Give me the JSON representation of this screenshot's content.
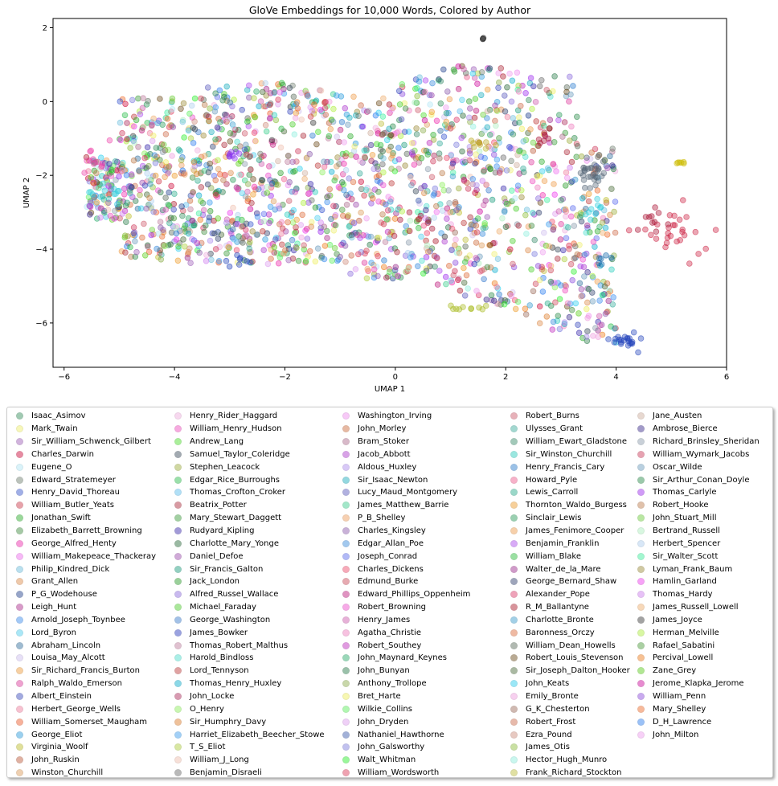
{
  "chart_data": {
    "type": "scatter",
    "title": "GloVe Embeddings for 10,000 Words, Colored by Author",
    "xlabel": "UMAP 1",
    "ylabel": "UMAP 2",
    "xlim": [
      -6.2,
      6.0
    ],
    "ylim": [
      -7.2,
      2.25
    ],
    "xticks": [
      -6,
      -4,
      -2,
      0,
      2,
      4,
      6
    ],
    "yticks": [
      -6,
      -4,
      -2,
      0,
      2
    ],
    "xtick_labels": [
      "−6",
      "−4",
      "−2",
      "0",
      "2",
      "4",
      "6"
    ],
    "ytick_labels": [
      "−6",
      "−4",
      "−2",
      "0",
      "2"
    ],
    "grid": false,
    "legend_placement": "below",
    "marker_alpha": 0.4,
    "authors": [
      {
        "name": "Isaac_Asimov",
        "color": "#2e8b57"
      },
      {
        "name": "Mark_Twain",
        "color": "#eeee66"
      },
      {
        "name": "Sir_William_Schwenck_Gilbert",
        "color": "#9b59b6"
      },
      {
        "name": "Charles_Darwin",
        "color": "#cc0033"
      },
      {
        "name": "Eugene_O",
        "color": "#aee6f5"
      },
      {
        "name": "Edward_Stratemeyer",
        "color": "#6b7b6b"
      },
      {
        "name": "Henry_David_Thoreau",
        "color": "#2f4fcc"
      },
      {
        "name": "William_Butler_Yeats",
        "color": "#cc3344"
      },
      {
        "name": "Jonathan_Swift",
        "color": "#22aa22"
      },
      {
        "name": "Elizabeth_Barrett_Browning",
        "color": "#3a8a3a"
      },
      {
        "name": "George_Alfred_Henty",
        "color": "#ee22aa"
      },
      {
        "name": "William_Makepeace_Thackeray",
        "color": "#ee66ee"
      },
      {
        "name": "Philip_Kindred_Dick",
        "color": "#66bbdd"
      },
      {
        "name": "Grant_Allen",
        "color": "#dd8844"
      },
      {
        "name": "P_G_Wodehouse",
        "color": "#1a3a8a"
      },
      {
        "name": "Leigh_Hunt",
        "color": "#aa2288"
      },
      {
        "name": "Arnold_Joseph_Toynbee",
        "color": "#3388ee"
      },
      {
        "name": "Lord_Byron",
        "color": "#44ccee"
      },
      {
        "name": "Abraham_Lincoln",
        "color": "#2a6a9a"
      },
      {
        "name": "Louisa_May_Alcott",
        "color": "#ccbbee"
      },
      {
        "name": "Sir_Richard_Francis_Burton",
        "color": "#ee9933"
      },
      {
        "name": "Ralph_Waldo_Emerson",
        "color": "#dd3399"
      },
      {
        "name": "Albert_Einstein",
        "color": "#3344bb"
      },
      {
        "name": "Herbert_George_Wells",
        "color": "#ee7799"
      },
      {
        "name": "William_Somerset_Maugham",
        "color": "#ee5522"
      },
      {
        "name": "George_Eliot",
        "color": "#2299dd"
      },
      {
        "name": "Virginia_Woolf",
        "color": "#bbbb22"
      },
      {
        "name": "John_Ruskin",
        "color": "#bb5533"
      },
      {
        "name": "Winston_Churchill",
        "color": "#dd9955"
      },
      {
        "name": "Henry_Rider_Haggard",
        "color": "#eeaadd"
      },
      {
        "name": "William_Henry_Hudson",
        "color": "#ee44bb"
      },
      {
        "name": "Andrew_Lang",
        "color": "#44dd22"
      },
      {
        "name": "Samuel_Taylor_Coleridge",
        "color": "#334455"
      },
      {
        "name": "Stephen_Leacock",
        "color": "#99aa33"
      },
      {
        "name": "Edgar_Rice_Burroughs",
        "color": "#22bb44"
      },
      {
        "name": "Thomas_Crofton_Croker",
        "color": "#55bbee"
      },
      {
        "name": "Beatrix_Potter",
        "color": "#aa2233"
      },
      {
        "name": "Mary_Stewart_Daggett",
        "color": "#339933"
      },
      {
        "name": "Rudyard_Kipling",
        "color": "#3322aa"
      },
      {
        "name": "Charlotte_Mary_Yonge",
        "color": "#226633"
      },
      {
        "name": "Daniel_Defoe",
        "color": "#9944aa"
      },
      {
        "name": "Sir_Francis_Galton",
        "color": "#119977"
      },
      {
        "name": "Jack_London",
        "color": "#229922"
      },
      {
        "name": "Alfred_Russel_Wallace",
        "color": "#8866dd"
      },
      {
        "name": "Michael_Faraday",
        "color": "#44cc22"
      },
      {
        "name": "George_Washington",
        "color": "#3377cc"
      },
      {
        "name": "James_Bowker",
        "color": "#2233bb"
      },
      {
        "name": "Thomas_Robert_Malthus",
        "color": "#bb7799"
      },
      {
        "name": "Harold_Bindloss",
        "color": "#44ddcc"
      },
      {
        "name": "Lord_Tennyson",
        "color": "#bb3333"
      },
      {
        "name": "Thomas_Henry_Huxley",
        "color": "#00aacc"
      },
      {
        "name": "John_Locke",
        "color": "#aa2255"
      },
      {
        "name": "O_Henry",
        "color": "#88ee55"
      },
      {
        "name": "Sir_Humphry_Davy",
        "color": "#dd7722"
      },
      {
        "name": "Harriet_Elizabeth_Beecher_Stowe",
        "color": "#3399ee"
      },
      {
        "name": "T_S_Eliot",
        "color": "#aacc33"
      },
      {
        "name": "William_J_Long",
        "color": "#eebbaa"
      },
      {
        "name": "Benjamin_Disraeli",
        "color": "#666666"
      },
      {
        "name": "Washington_Irving",
        "color": "#ee88ee"
      },
      {
        "name": "John_Morley",
        "color": "#cc6633"
      },
      {
        "name": "Bram_Stoker",
        "color": "#aa6688"
      },
      {
        "name": "Jacob_Abbott",
        "color": "#aa33cc"
      },
      {
        "name": "Aldous_Huxley",
        "color": "#aa88ee"
      },
      {
        "name": "Sir_Isaac_Newton",
        "color": "#11aabb"
      },
      {
        "name": "Lucy_Maud_Montgomery",
        "color": "#5555bb"
      },
      {
        "name": "James_Matthew_Barrie",
        "color": "#33cc88"
      },
      {
        "name": "P_B_Shelley",
        "color": "#ee9955"
      },
      {
        "name": "Charles_Kingsley",
        "color": "#8855aa"
      },
      {
        "name": "Edgar_Allan_Poe",
        "color": "#3388dd"
      },
      {
        "name": "Joseph_Conrad",
        "color": "#5566ee"
      },
      {
        "name": "Charles_Dickens",
        "color": "#ee4466"
      },
      {
        "name": "Edmund_Burke",
        "color": "#cc4455"
      },
      {
        "name": "Edward_Phillips_Oppenheim",
        "color": "#bb1177"
      },
      {
        "name": "Robert_Browning",
        "color": "#ee44cc"
      },
      {
        "name": "Henry_James",
        "color": "#cc55aa"
      },
      {
        "name": "Agatha_Christie",
        "color": "#ee77bb"
      },
      {
        "name": "Robert_Southey",
        "color": "#bb22bb"
      },
      {
        "name": "John_Maynard_Keynes",
        "color": "#22aa66"
      },
      {
        "name": "John_Bunyan",
        "color": "#227744"
      },
      {
        "name": "Anthony_Trollope",
        "color": "#88aa44"
      },
      {
        "name": "Bret_Harte",
        "color": "#eeee55"
      },
      {
        "name": "Wilkie_Collins",
        "color": "#55ee55"
      },
      {
        "name": "John_Dryden",
        "color": "#dd99ee"
      },
      {
        "name": "Nathaniel_Hawthorne",
        "color": "#3355aa"
      },
      {
        "name": "John_Galsworthy",
        "color": "#7777dd"
      },
      {
        "name": "Walt_Whitman",
        "color": "#22ee22"
      },
      {
        "name": "William_Wordsworth",
        "color": "#dd3355"
      },
      {
        "name": "Robert_Burns",
        "color": "#cc5566"
      },
      {
        "name": "Ulysses_Grant",
        "color": "#33aa99"
      },
      {
        "name": "William_Ewart_Gladstone",
        "color": "#338866"
      },
      {
        "name": "Sir_Winston_Churchill",
        "color": "#22ccbb"
      },
      {
        "name": "Henry_Francis_Cary",
        "color": "#2277cc"
      },
      {
        "name": "Howard_Pyle",
        "color": "#ee5588"
      },
      {
        "name": "Lewis_Carroll",
        "color": "#22aa88"
      },
      {
        "name": "Thornton_Waldo_Burgess",
        "color": "#ee9922"
      },
      {
        "name": "Sinclair_Lewis",
        "color": "#229955"
      },
      {
        "name": "James_Fenimore_Cooper",
        "color": "#ee9944"
      },
      {
        "name": "Benjamin_Franklin",
        "color": "#aa44ee"
      },
      {
        "name": "William_Blake",
        "color": "#22bb33"
      },
      {
        "name": "Walter_de_la_Mare",
        "color": "#992288"
      },
      {
        "name": "George_Bernard_Shaw",
        "color": "#2a3a6a"
      },
      {
        "name": "Alexander_Pope",
        "color": "#dd3366"
      },
      {
        "name": "R_M_Ballantyne",
        "color": "#aa1122"
      },
      {
        "name": "Charlotte_Bronte",
        "color": "#3399cc"
      },
      {
        "name": "Baronness_Orczy",
        "color": "#dd6633"
      },
      {
        "name": "William_Dean_Howells",
        "color": "#556655"
      },
      {
        "name": "Robert_Louis_Stevenson",
        "color": "#664411"
      },
      {
        "name": "Sir_Joseph_Dalton_Hooker",
        "color": "#446633"
      },
      {
        "name": "John_Keats",
        "color": "#22ccee"
      },
      {
        "name": "Emily_Bronte",
        "color": "#ee99dd"
      },
      {
        "name": "G_K_Chesterton",
        "color": "#996655"
      },
      {
        "name": "Robert_Frost",
        "color": "#cc6644"
      },
      {
        "name": "Ezra_Pound",
        "color": "#cc8877"
      },
      {
        "name": "James_Otis",
        "color": "#88bb33"
      },
      {
        "name": "Hector_Hugh_Munro",
        "color": "#88eedd"
      },
      {
        "name": "Frank_Richard_Stockton",
        "color": "#bbbb33"
      },
      {
        "name": "Jane_Austen",
        "color": "#ccaa99"
      },
      {
        "name": "Ambrose_Bierce",
        "color": "#332288"
      },
      {
        "name": "Richard_Brinsley_Sheridan",
        "color": "#8899aa"
      },
      {
        "name": "William_Wymark_Jacobs",
        "color": "#cc3355"
      },
      {
        "name": "Oscar_Wilde",
        "color": "#6699bb"
      },
      {
        "name": "Sir_Arthur_Conan_Doyle",
        "color": "#228844"
      },
      {
        "name": "Thomas_Carlyle",
        "color": "#9922ee"
      },
      {
        "name": "Robert_Hooke",
        "color": "#bb7744"
      },
      {
        "name": "John_Stuart_Mill",
        "color": "#66cc33"
      },
      {
        "name": "Bertrand_Russell",
        "color": "#aaeebb"
      },
      {
        "name": "Herbert_Spencer",
        "color": "#aaccee"
      },
      {
        "name": "Sir_Walter_Scott",
        "color": "#33ee99"
      },
      {
        "name": "Lyman_Frank_Baum",
        "color": "#998833"
      },
      {
        "name": "Hamlin_Garland",
        "color": "#ee33ee"
      },
      {
        "name": "Thomas_Hardy",
        "color": "#cc77ee"
      },
      {
        "name": "James_Russell_Lowell",
        "color": "#eeaa66"
      },
      {
        "name": "James_Joyce",
        "color": "#333333"
      },
      {
        "name": "Herman_Melville",
        "color": "#aaee33"
      },
      {
        "name": "Rafael_Sabatini",
        "color": "#449933"
      },
      {
        "name": "Percival_Lowell",
        "color": "#ee7711"
      },
      {
        "name": "Zane_Grey",
        "color": "#55cc11"
      },
      {
        "name": "Jerome_Klapka_Jerome",
        "color": "#cc0099"
      },
      {
        "name": "William_Penn",
        "color": "#8844dd"
      },
      {
        "name": "Mary_Shelley",
        "color": "#ee6622"
      },
      {
        "name": "D_H_Lawrence",
        "color": "#2277ee"
      },
      {
        "name": "John_Milton",
        "color": "#ee99ee"
      }
    ]
  }
}
